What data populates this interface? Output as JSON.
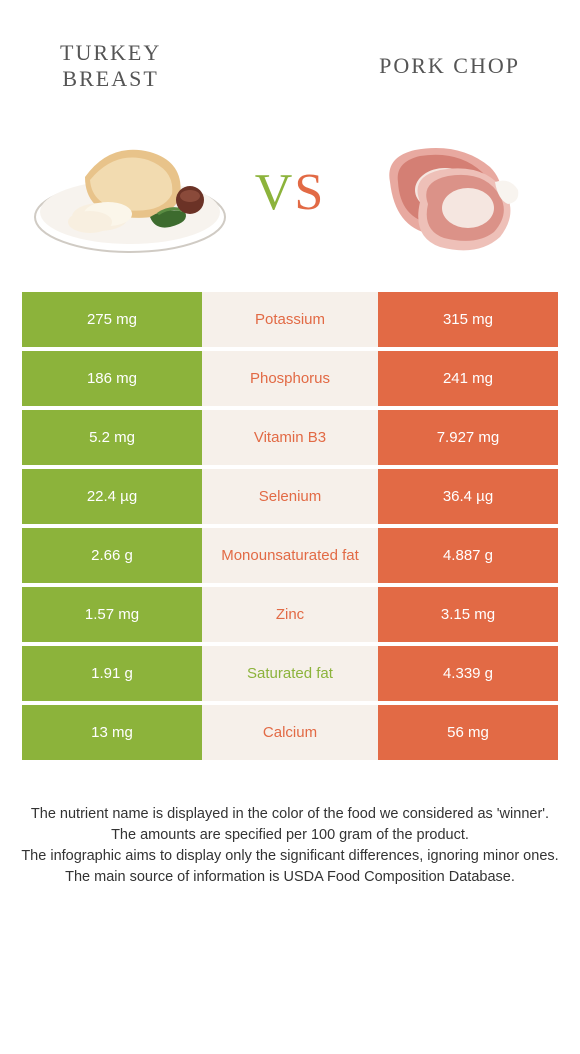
{
  "colors": {
    "left_bar": "#8cb33b",
    "right_bar": "#e26a45",
    "mid_bg": "#f6f0ea",
    "mid_text_left": "#e26a45",
    "mid_text_right": "#8cb33b"
  },
  "header": {
    "left_title": "Turkey\nbreast",
    "right_title": "Pork chop",
    "vs_v": "V",
    "vs_s": "S"
  },
  "rows": [
    {
      "left": "275 mg",
      "label": "Potassium",
      "right": "315 mg",
      "winner": "right"
    },
    {
      "left": "186 mg",
      "label": "Phosphorus",
      "right": "241 mg",
      "winner": "right"
    },
    {
      "left": "5.2 mg",
      "label": "Vitamin B3",
      "right": "7.927 mg",
      "winner": "right"
    },
    {
      "left": "22.4 µg",
      "label": "Selenium",
      "right": "36.4 µg",
      "winner": "right"
    },
    {
      "left": "2.66 g",
      "label": "Monounsaturated fat",
      "right": "4.887 g",
      "winner": "right"
    },
    {
      "left": "1.57 mg",
      "label": "Zinc",
      "right": "3.15 mg",
      "winner": "right"
    },
    {
      "left": "1.91 g",
      "label": "Saturated fat",
      "right": "4.339 g",
      "winner": "left"
    },
    {
      "left": "13 mg",
      "label": "Calcium",
      "right": "56 mg",
      "winner": "right"
    }
  ],
  "footer": {
    "l1": "The nutrient name is displayed in the color of the food we considered as 'winner'.",
    "l2": "The amounts are specified per 100 gram of the product.",
    "l3": "The infographic aims to display only the significant differences, ignoring minor ones.",
    "l4": "The main source of information is USDA Food Composition Database."
  }
}
